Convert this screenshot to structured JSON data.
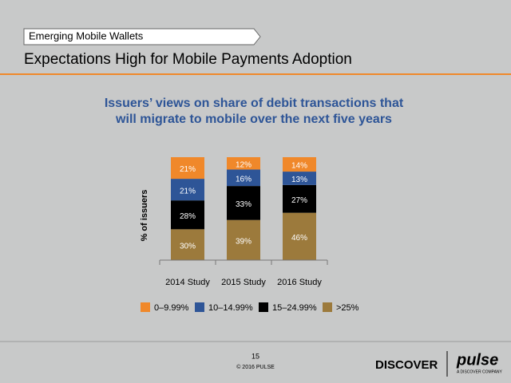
{
  "header": {
    "section": "Emerging Mobile Wallets",
    "title": "Expectations High for Mobile Payments Adoption"
  },
  "chart_data": {
    "type": "stacked-bar",
    "title": [
      "Issuers’ views on share of debit transactions that",
      "will migrate to mobile over the next five years"
    ],
    "y_label": "% of issuers",
    "categories": [
      "2014 Study",
      "2015 Study",
      "2016 Study"
    ],
    "series": [
      {
        "name": "0–9.99%",
        "color": "#f0882a",
        "values": [
          21,
          12,
          14
        ],
        "value_labels": [
          "21%",
          "12%",
          "14%"
        ]
      },
      {
        "name": "10–14.99%",
        "color": "#2e5597",
        "values": [
          21,
          16,
          13
        ],
        "value_labels": [
          "21%",
          "16%",
          "13%"
        ]
      },
      {
        "name": "15–24.99%",
        "color": "#000000",
        "values": [
          28,
          33,
          27
        ],
        "value_labels": [
          "28%",
          "33%",
          "27%"
        ]
      },
      {
        "name": ">25%",
        "color": "#9c7a3c",
        "values": [
          30,
          39,
          46
        ],
        "value_labels": [
          "30%",
          "39%",
          "46%"
        ]
      }
    ],
    "ylim": [
      0,
      100
    ]
  },
  "footer": {
    "page": "15",
    "copyright": "© 2016 PULSE",
    "logo_left": "DISCOVER",
    "logo_right": "pulse",
    "logo_tagline": "A DISCOVER COMPANY"
  }
}
